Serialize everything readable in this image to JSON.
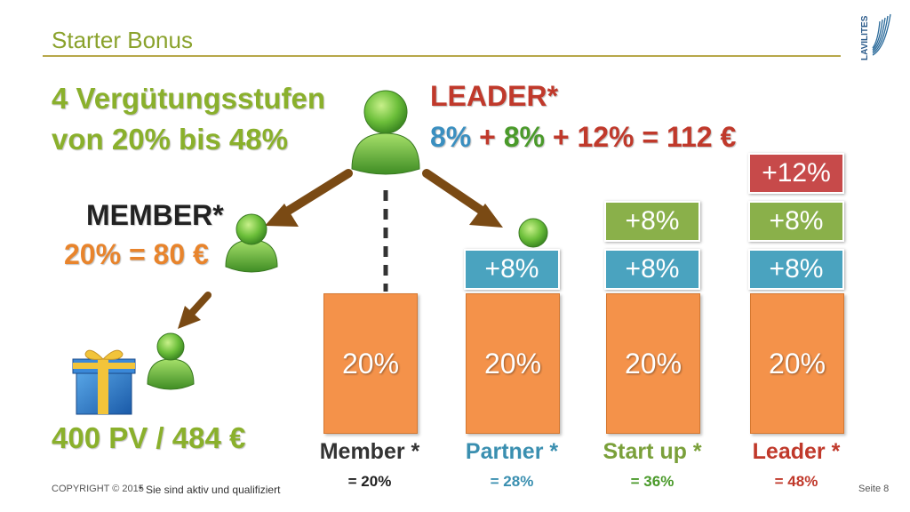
{
  "header": {
    "title": "Starter Bonus",
    "logo_text": "LAVILITES"
  },
  "headline": {
    "line1": "4 Vergütungsstufen",
    "line2": "von 20% bis 48%"
  },
  "leader": {
    "label": "LEADER*",
    "formula": [
      {
        "text": "8%",
        "color": "#3a8fc0"
      },
      {
        "text": " + ",
        "color": "#c0392b"
      },
      {
        "text": "8%",
        "color": "#4a9a2a"
      },
      {
        "text": " + ",
        "color": "#c0392b"
      },
      {
        "text": "12%",
        "color": "#c0392b"
      },
      {
        "text": " = 112 €",
        "color": "#c0392b"
      }
    ]
  },
  "member": {
    "label": "MEMBER*",
    "value": "20% = 80 €"
  },
  "pv_text": "400 PV / 484 €",
  "tiers": [
    {
      "name": "Member *",
      "total": "= 20%",
      "name_color": "#333333",
      "total_color": "#222222",
      "base": "20%",
      "chips": []
    },
    {
      "name": "Partner *",
      "total": "= 28%",
      "name_color": "#3a8fb0",
      "total_color": "#3a8fb0",
      "base": "20%",
      "chips": [
        {
          "text": "+8%",
          "style": "blue"
        }
      ]
    },
    {
      "name": "Start up *",
      "total": "= 36%",
      "name_color": "#7aa03a",
      "total_color": "#4a9a2a",
      "base": "20%",
      "chips": [
        {
          "text": "+8%",
          "style": "blue"
        },
        {
          "text": "+8%",
          "style": "green"
        }
      ]
    },
    {
      "name": "Leader *",
      "total": "= 48%",
      "name_color": "#c0392b",
      "total_color": "#c0392b",
      "base": "20%",
      "chips": [
        {
          "text": "+8%",
          "style": "blue"
        },
        {
          "text": "+8%",
          "style": "green"
        },
        {
          "text": "+12%",
          "style": "red"
        }
      ]
    }
  ],
  "footer": {
    "copyright": "COPYRIGHT © 2015",
    "footnote": "* Sie sind aktiv und qualifiziert",
    "page": "Seite 8"
  }
}
